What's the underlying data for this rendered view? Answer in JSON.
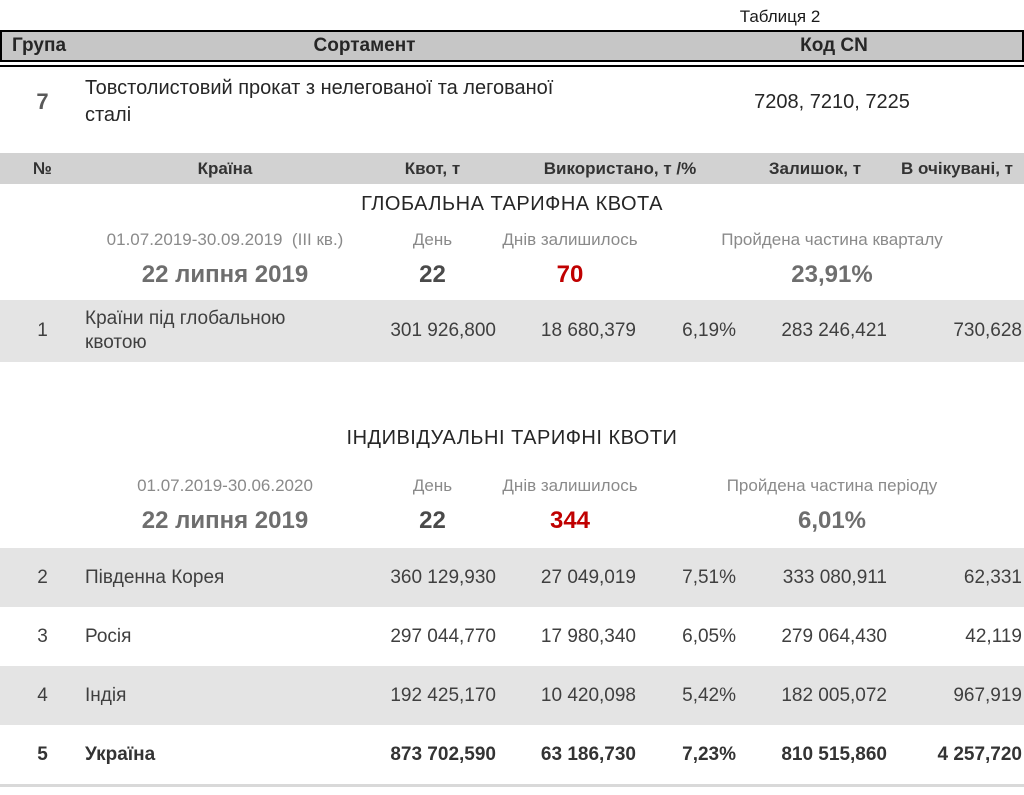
{
  "caption": "Таблиця 2",
  "colors": {
    "header_dark_bg": "#c6c6c6",
    "header_light_bg": "#d2d2d2",
    "row_stripe_bg": "#e4e4e4",
    "days_left_red": "#c00000",
    "muted_gray_text": "#8a8a8a",
    "border_black": "#000000"
  },
  "group_table": {
    "headers": {
      "group": "Група",
      "assortment": "Сортамент",
      "cn_code": "Код CN"
    },
    "row": {
      "group": "7",
      "assortment": "Товстолистовий прокат з нелегованої та легованої сталі",
      "cn_code": "7208, 7210, 7225"
    }
  },
  "quota_headers": {
    "num": "№",
    "country": "Країна",
    "quota": "Квот, т",
    "used": "Використано, т /%",
    "remainder": "Залишок, т",
    "expected": "В очікувані, т"
  },
  "sections": [
    {
      "title": "ГЛОБАЛЬНА ТАРИФНА КВОТА",
      "period_label": "01.07.2019-30.09.2019  (III кв.)",
      "day_label": "День",
      "days_left_label": "Днів залишилось",
      "progress_label": "Пройдена частина кварталу",
      "date_value": "22 липня 2019",
      "day_value": "22",
      "days_left_value": "70",
      "progress_value": "23,91%",
      "rows": [
        {
          "num": "1",
          "country": "Країни під глобальною квотою",
          "quota": "301 926,800",
          "used": "18 680,379",
          "used_pct": "6,19%",
          "remainder": "283 246,421",
          "expected": "730,628"
        }
      ]
    },
    {
      "title": "ІНДИВІДУАЛЬНІ ТАРИФНІ КВОТИ",
      "period_label": "01.07.2019-30.06.2020",
      "day_label": "День",
      "days_left_label": "Днів залишилось",
      "progress_label": "Пройдена частина періоду",
      "date_value": "22 липня 2019",
      "day_value": "22",
      "days_left_value": "344",
      "progress_value": "6,01%",
      "rows": [
        {
          "num": "2",
          "country": "Південна Корея",
          "quota": "360 129,930",
          "used": "27 049,019",
          "used_pct": "7,51%",
          "remainder": "333 080,911",
          "expected": "62,331"
        },
        {
          "num": "3",
          "country": "Росія",
          "quota": "297 044,770",
          "used": "17 980,340",
          "used_pct": "6,05%",
          "remainder": "279 064,430",
          "expected": "42,119"
        },
        {
          "num": "4",
          "country": "Індія",
          "quota": "192 425,170",
          "used": "10 420,098",
          "used_pct": "5,42%",
          "remainder": "182 005,072",
          "expected": "967,919"
        },
        {
          "num": "5",
          "country": "Україна",
          "quota": "873 702,590",
          "used": "63 186,730",
          "used_pct": "7,23%",
          "remainder": "810 515,860",
          "expected": "4 257,720"
        }
      ]
    }
  ]
}
